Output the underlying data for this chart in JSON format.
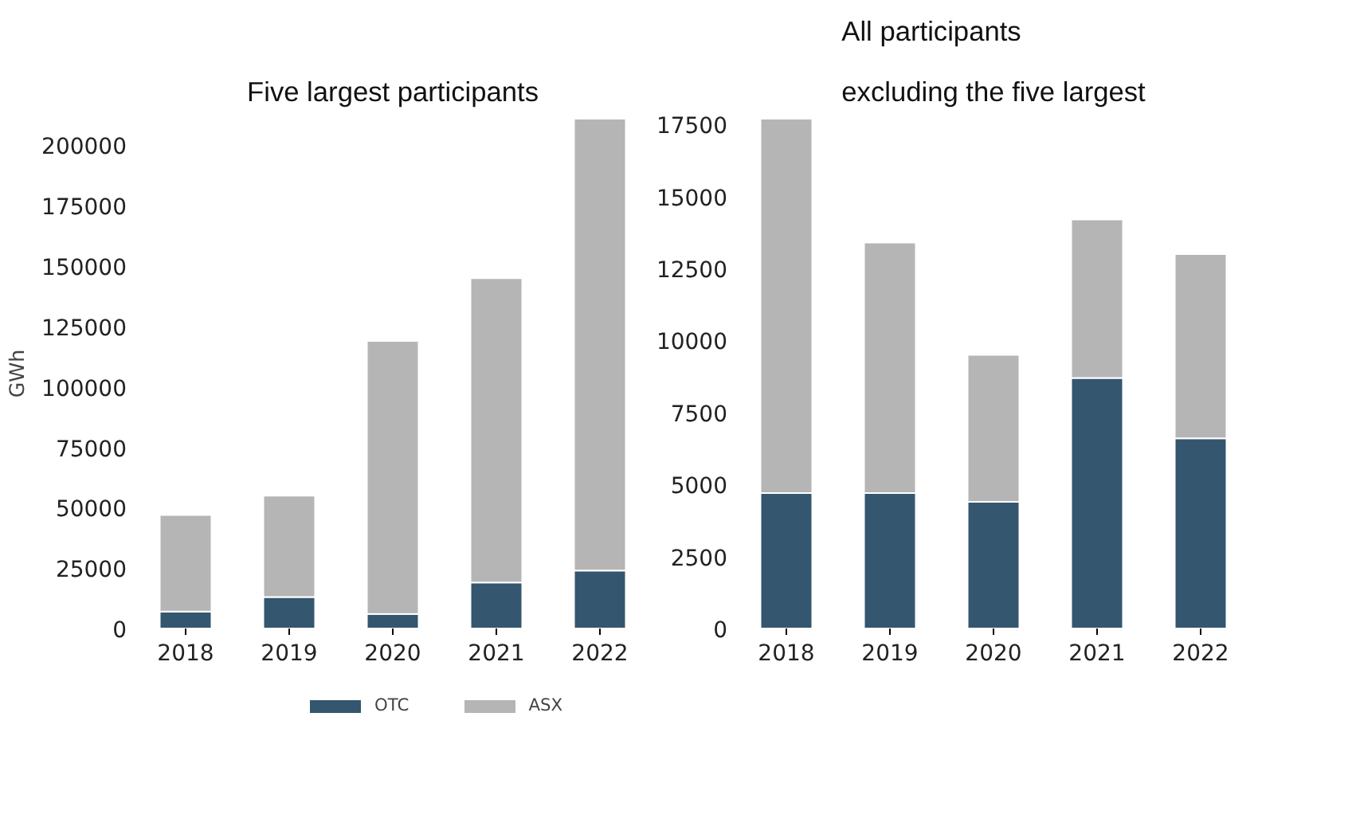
{
  "chart_data": [
    {
      "type": "bar",
      "title": "Five largest participants",
      "ylabel": "GWh",
      "stacked": true,
      "categories": [
        "2018",
        "2019",
        "2020",
        "2021",
        "2022"
      ],
      "series": [
        {
          "name": "OTC",
          "color": "#34566e",
          "values": [
            7000,
            13000,
            6000,
            19000,
            24000
          ]
        },
        {
          "name": "ASX",
          "color": "#b5b5b5",
          "values": [
            40000,
            42000,
            113000,
            126000,
            187000
          ]
        }
      ],
      "ylim": [
        0,
        211000
      ],
      "yticks": [
        0,
        25000,
        50000,
        75000,
        100000,
        125000,
        150000,
        175000,
        200000
      ],
      "grid": false,
      "legend": "bottom"
    },
    {
      "type": "bar",
      "title": "All participants\nexcluding the five largest",
      "stacked": true,
      "categories": [
        "2018",
        "2019",
        "2020",
        "2021",
        "2022"
      ],
      "series": [
        {
          "color": "#34566e",
          "values": [
            4700,
            4700,
            4400,
            8700,
            6600
          ]
        },
        {
          "color": "#b5b5b5",
          "values": [
            13000,
            8700,
            5100,
            5500,
            6400
          ]
        }
      ],
      "ylim": [
        0,
        17700
      ],
      "yticks": [
        0,
        2500,
        5000,
        7500,
        10000,
        12500,
        15000,
        17500
      ],
      "grid": false
    }
  ]
}
